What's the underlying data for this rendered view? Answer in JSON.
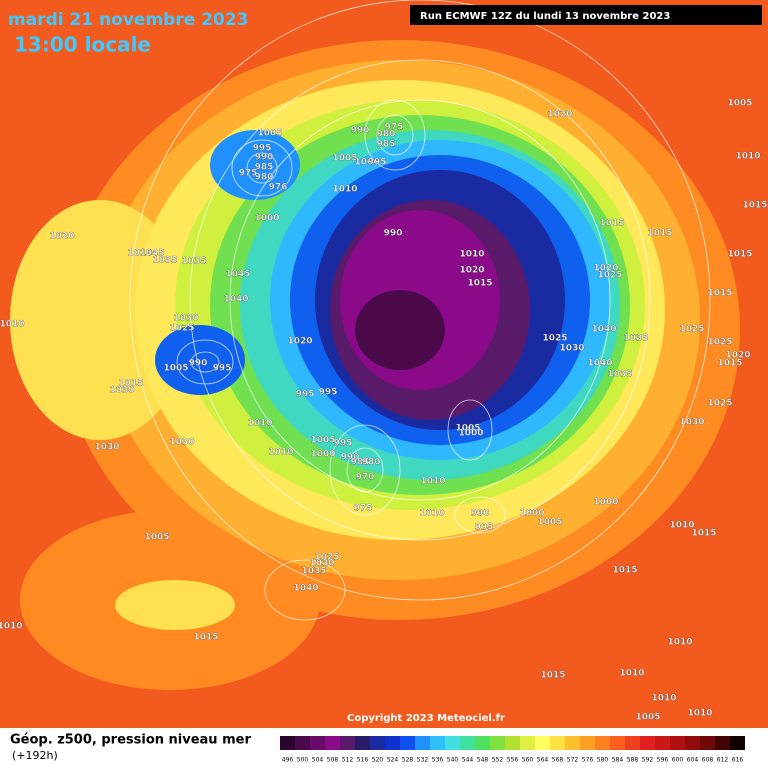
{
  "header": {
    "date": "mardi 21 novembre 2023",
    "time": "13:00 locale",
    "run": "Run ECMWF 12Z du lundi 13 novembre 2023"
  },
  "copyright": "Copyright 2023 Meteociel.fr",
  "footer": {
    "title": "Géop. z500, pression niveau mer",
    "lead": "(+192h)"
  },
  "legend": {
    "values": [
      496,
      500,
      504,
      508,
      512,
      516,
      520,
      524,
      528,
      532,
      536,
      540,
      544,
      548,
      552,
      556,
      560,
      564,
      568,
      572,
      576,
      580,
      584,
      588,
      592,
      596,
      600,
      604,
      608,
      612,
      616
    ],
    "colors": [
      "#2a0530",
      "#4a0a4a",
      "#6a0a6a",
      "#8a0a8a",
      "#5a1a6a",
      "#2a1a6a",
      "#1a2aa0",
      "#1030d0",
      "#1050f0",
      "#2090ff",
      "#30c0ff",
      "#40e0e0",
      "#40e0a0",
      "#50e060",
      "#80e040",
      "#b0e030",
      "#e0f040",
      "#ffff60",
      "#ffe040",
      "#ffc030",
      "#ffa020",
      "#ff8020",
      "#ff6020",
      "#f04020",
      "#e02020",
      "#c81818",
      "#b01010",
      "#900c0c",
      "#700808",
      "#400404",
      "#100000"
    ]
  },
  "isobar_labels": [
    1005,
    1010,
    1015,
    1020,
    975,
    980,
    985,
    990,
    1005,
    995,
    990,
    985,
    980,
    975,
    976,
    1005,
    1000,
    995,
    1010,
    1000,
    990,
    1015,
    1015,
    1020,
    1010,
    1045,
    1035,
    1035,
    1010,
    1020,
    1015,
    1020,
    1025,
    1015,
    1045,
    1040,
    1015,
    1030,
    1025,
    1040,
    1035,
    1025,
    1025,
    1020,
    1015,
    1010,
    1020,
    1025,
    1030,
    1040,
    1035,
    990,
    995,
    1005,
    1015,
    1030,
    995,
    995,
    1025,
    1030,
    1010,
    1005,
    1000,
    1005,
    995,
    1000,
    1010,
    990,
    985,
    980,
    970,
    975,
    1010,
    1030,
    1030,
    990,
    995,
    1000,
    1005,
    1010,
    1000,
    1010,
    1015,
    1005,
    1025,
    1030,
    1035,
    1040,
    1015,
    1015,
    1010,
    1010,
    1010,
    1015,
    1010,
    1005,
    1010
  ]
}
